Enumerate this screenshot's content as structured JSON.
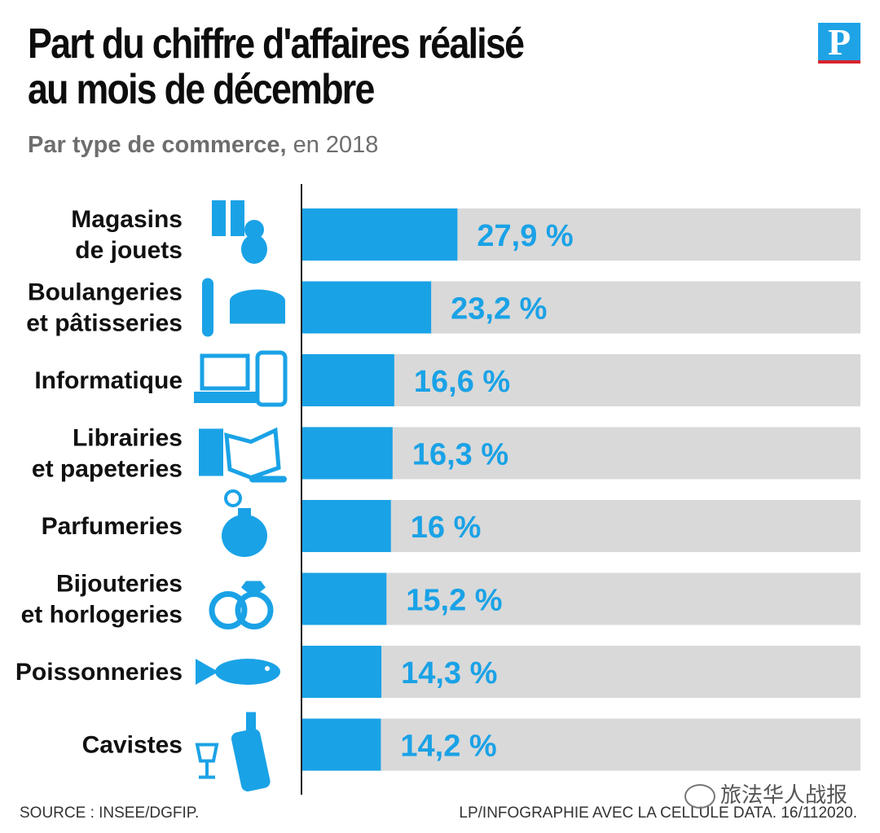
{
  "header": {
    "title_line1": "Part du chiffre d'affaires réalisé",
    "title_line2": "au mois de décembre",
    "subtitle_bold": "Par type de commerce,",
    "subtitle_rest": " en 2018",
    "logo": "P"
  },
  "colors": {
    "bar": "#1aa2e6",
    "track": "#d9d9d9",
    "axis": "#222222",
    "icon": "#1aa2e6"
  },
  "chart_data": {
    "type": "bar",
    "orientation": "horizontal",
    "title": "Part du chiffre d'affaires réalisé au mois de décembre",
    "subtitle": "Par type de commerce, en 2018",
    "xlim": [
      0,
      100
    ],
    "unit": "%",
    "categories": [
      [
        "Magasins",
        "de jouets"
      ],
      [
        "Boulangeries",
        "et pâtisseries"
      ],
      [
        "Informatique"
      ],
      [
        "Librairies",
        "et papeteries"
      ],
      [
        "Parfumeries"
      ],
      [
        "Bijouteries",
        "et horlogeries"
      ],
      [
        "Poissonneries"
      ],
      [
        "Cavistes"
      ]
    ],
    "values": [
      27.9,
      23.2,
      16.6,
      16.3,
      16,
      15.2,
      14.3,
      14.2
    ],
    "value_labels": [
      "27,9 %",
      "23,2 %",
      "16,6 %",
      "16,3 %",
      "16 %",
      "15,2 %",
      "14,3 %",
      "14,2 %"
    ],
    "icons": [
      "gift-and-teddy-bear-icon",
      "bread-and-cake-icon",
      "laptop-and-phone-icon",
      "books-and-pen-icon",
      "perfume-bottle-icon",
      "rings-icon",
      "fish-icon",
      "wine-bottle-and-glass-icon"
    ]
  },
  "footer": {
    "source": "SOURCE : INSEE/DGFIP.",
    "credit": "LP/INFOGRAPHIE AVEC LA CELLULE DATA. 16/112020.",
    "watermark": "旅法华人战报"
  }
}
